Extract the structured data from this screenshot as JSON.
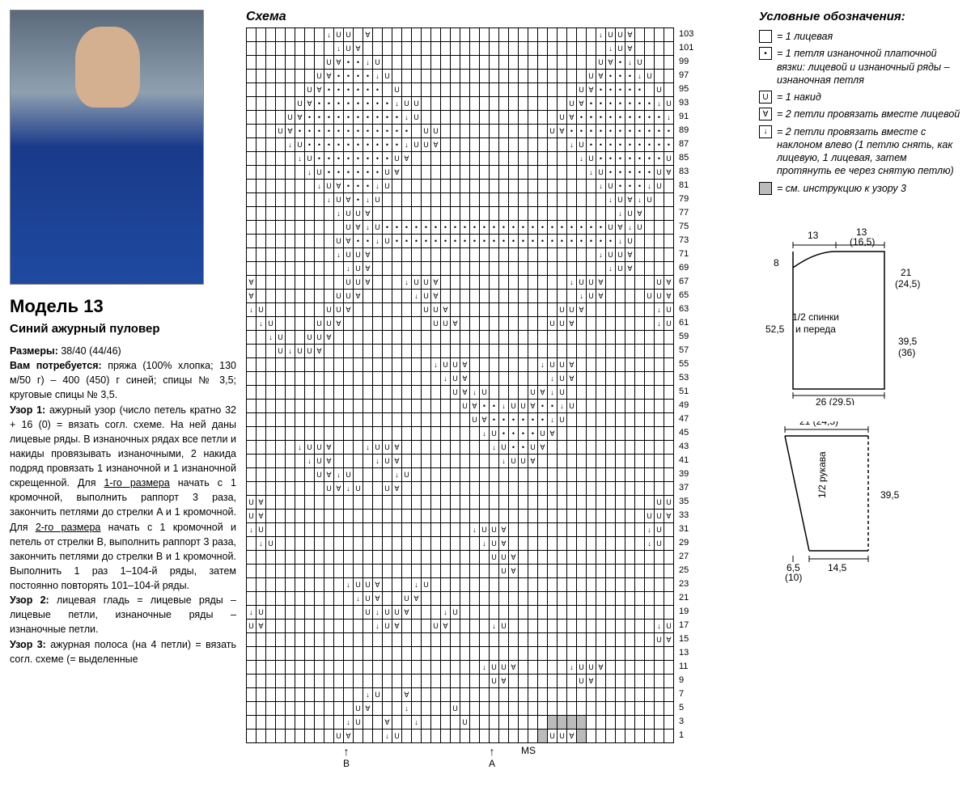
{
  "left": {
    "model_title": "Модель 13",
    "subtitle": "Синий ажурный пуловер",
    "sizes_label": "Размеры:",
    "sizes_value": "38/40 (44/46)",
    "needs_label": "Вам потребуется:",
    "needs_text": "пряжа (100% хлопка; 130 м/50 г) – 400 (450) г синей; спицы № 3,5; круговые спицы № 3,5.",
    "uzor1_label": "Узор 1:",
    "uzor1_text": "ажурный узор (число петель кратно 32 + 16 (0) = вязать согл. схеме. На ней даны лицевые ряды. В изнаночных рядах все петли и накиды провязывать изнаночными, 2 накида подряд провязать 1 изнаночной и 1 изнаночной скрещенной. Для ",
    "size1_u": "1-го размера",
    "uzor1_text2": " начать с 1 кромочной, выполнить раппорт 3 раза, закончить петлями до стрелки A и 1 кромочной. Для ",
    "size2_u": "2-го размера",
    "uzor1_text3": " начать с 1 кромочной и петель от стрелки B, выполнить раппорт 3 раза, закончить петлями до стрелки B и 1 кромочной. Выполнить 1 раз 1–104-й ряды, затем постоянно повторять 101–104-й ряды.",
    "uzor2_label": "Узор 2:",
    "uzor2_text": "лицевая гладь = лицевые ряды – лицевые петли, изнаночные ряды – изнаночные петли.",
    "uzor3_label": "Узор 3:",
    "uzor3_text": "ажурная полоса (на 4 петли) = вязать согл. схеме (= выделенные"
  },
  "center": {
    "schema_title": "Схема",
    "ms_label": "MS",
    "arrow_b": "B",
    "arrow_a": "A"
  },
  "legend": {
    "title": "Условные обозначения:",
    "items": [
      {
        "sym": "",
        "text": "= 1 лицевая"
      },
      {
        "sym": "•",
        "text": "= 1 петля изнаночной платочной вязки: лицевой и изнаночный ряды – изнаночная петля"
      },
      {
        "sym": "U",
        "text": "= 1 накид"
      },
      {
        "sym": "∀",
        "text": "= 2 петли провязать вместе лицевой"
      },
      {
        "sym": "↓",
        "text": "= 2 петли провязать вместе с наклоном влево (1 петлю снять, как лицевую, 1 лицевая, затем протянуть ее через снятую петлю)"
      },
      {
        "sym": "",
        "gray": true,
        "text": "= см. инструкцию к узору 3"
      }
    ]
  },
  "schematic": {
    "body_label": "1/2 спинки\nи переда",
    "sleeve_label": "1/2 рукава",
    "dims": {
      "top_left": "13",
      "top_right": "13\n(16,5)",
      "neck_depth": "8",
      "side_right_top": "21\n(24,5)",
      "side_left": "52,5",
      "side_right_bot": "39,5\n(36)",
      "bottom": "26 (29,5)",
      "sleeve_top": "21 (24,5)",
      "sleeve_side": "39,5",
      "sleeve_bot_l": "6,5\n(10)",
      "sleeve_bot_r": "14,5"
    }
  },
  "chart": {
    "cols": 44,
    "row_numbers": [
      103,
      101,
      99,
      97,
      95,
      93,
      91,
      89,
      87,
      85,
      83,
      81,
      79,
      77,
      75,
      73,
      71,
      69,
      67,
      65,
      63,
      61,
      59,
      57,
      55,
      53,
      51,
      49,
      47,
      45,
      43,
      41,
      39,
      37,
      35,
      33,
      31,
      29,
      27,
      25,
      23,
      21,
      19,
      17,
      15,
      13,
      11,
      9,
      7,
      5,
      3,
      1
    ],
    "symbols": {
      "e": "",
      "d": "•",
      "u": "U",
      "v": "∀",
      "w": "↓"
    },
    "rows": [
      "eeeeeeeewuueveeeeeeeeeeeeeeeeeeeeeeewuuveeee",
      "eeeeeeeeewuveeeeeeeeeeeeeeeeeeeeeeeeewuveeee",
      "eeeeeeeeuvddwueeeeeeeeeeeeeeeeeeeeeeuvdwueee",
      "eeeeeeeuvddddwueeeeeeeeeeeeeeeeeeeeuvdddwuee",
      "eeeeeeuvddddddeueeeeeeeeeeeeeeeeeeuvdddddeue",
      "eeeeeuvddddddddwuueeeeeeeeeeeeeeeuvdddddddwu",
      "eeeeuvddddddddddwueeeeeeeeeeeeeeuvdddddddddw",
      "eeeuvddddddddddddeuueeeeeeeeeeeuvddddddddddd",
      "eeeewuddddddddddwuuveeeeeeeeeeeeewudddddddddw",
      "eeeeewudddddddduveeeeeeeeeeeeeeeeewudddddddu",
      "eeeeeewudddddduveeeeeeeeeeeeeeeeeeewuddddduv",
      "eeeeeeewuvdddwueeeeeeeeeeeeeeeeeeeeewudddwue",
      "eeeeeeeewuvdwueeeeeeeeeeeeeeeeeeeeeeewuvwuee",
      "eeeeeeeeewuuveeeeeeeeeeeeeeeeeeeeeeeeewuveee",
      "eeeeeeeeeeuvwuddddddddddddddddddddddduvwueee",
      "eeeeeeeeeuvddwudddddddddddddddddddddddwueeee",
      "eeeeeeeeewuuveeeeeeeeeeeeeeeeeeeeeeewuuveeee",
      "eeeeeeeeeewuveeeeeeeeeeeeeeeeeeeeeeeewuveeee",
      "veeeeeeeeeuuveeewuuveeeeeeeeeeeeewuuveeeeeuv",
      "veeeeeeeeuuveeeeewuveeeeeeeeeeeeeewuveeeeuuv",
      "wueeeeeeuuveeeeeeeuuveeeeeeeeeeeuuveeeeeeewu",
      "ewueeeeuuveeeeeeeeeuuveeeeeeeeeuuveeeeeeeewu",
      "eewueeuuveeeeeeeeeeeeeeeeeeeeeeeeeeeeeeeeeee",
      "eeeuwuuveeeeeeeeeeeeeeeeeeeeeeeeeeeeeeeeeeee",
      "eeeeeeeeeeeeeeeeeeewuuveeeeeeewuuveeeeeeeeee",
      "eeeeeeeeeeeeeeeeeeeewuveeeeeeeewuveeeeeeeeee",
      "eeeeeeeeeeeeeeeeeeeeeuvwueeeeuvwueeeeeeeeeee",
      "eeeeeeeeeeeeeeeeeeeeeeuvddwuuvddwueeeeeeeeee",
      "eeeeeeeeeeeeeeeeeeeeeeeuvddddddwueeeeeeeeeee",
      "eeeeeeeeeeeeeeeeeeeeeeeewudddduveeeeeeeeeeee",
      "eeeeewuuveeewuuveeeeeeeeewudduveeeeeeeeeeeee",
      "eeeeeewuveeeewuveeeeeeeeeewuuveeeeeeeeeeeeee",
      "eeeeeeeuvwueeeewueeeeeeeeeeeeeeeeeeeeeeeeeee",
      "eeeeeeeeuvwueeuveeeeeeeeeeeeeeeeeeeeeeeeeeee",
      "uveeeeeeeeeeeeeeeeeeeeeeeeeeeeeeeeeeeeeeeeuuv",
      "uveeeeeeeeeeeeeeeeeeeeeeeeeeeeeeeeeeeeeeeuuve",
      "wueeeeeeeeeeeeeeeeeeeeewuuveeeeeeeeeeeeeewuee",
      "ewueeeeeeeeeeeeeeeeeeeeewuveeeeeeeeeeeeeewue",
      "eeeeeeeeeeeeeeeeeeeeeeeeeuuveeeeeeeeeeeeeeee",
      "eeeeeeeeeeeeeeeeeeeeeeeeeeuveeeeeeeeeeeeeeee",
      "eeeeeeeeeewuuveeewueeeeeeeeeeeeeeeeeeeeeeeee",
      "eeeeeeeeeeewuveeuveeeeeeeeeeeeeeeeeeeeeeeeee",
      "wueeeeeeeeeeuwuuveeewueeeeeeeeeeeeeeeeeeeeee",
      "uveeeeeeeeeeewuveeeuveeeewueeeeeeeeeeeeeeewu",
      "eeeeeeeeeeeeeeeeeeeeeeeeeeeeeeeeeeeeeeeeeeuv",
      "eeeeeeeeeeeeeeeeeeeeeeeeeeeeeeeeeeeeeeeeeeee",
      "eeeeeeeeeeeeeeeeeeeeeeeewuuveeeeewuuveeeeeee",
      "eeeeeeeeeeeeeeeeeeeeeeeeeuveeeeeeeuveeeeeeee",
      "eeeeeeeeeeeewueeveeeeeeeeeeeeeeeeeeeeeeeeeee",
      "eeeeeeeeeeeuveeeweeeeueeeeeeeeeeeeeeeeeeeeee",
      "eeeeeeeeeewueeveeweeeeueeeeeeeesssseeeeeeeee",
      "eeeeeeeeeuveeewueeeeeeeeeeeeeesuuvseeeeeeeee"
    ]
  }
}
